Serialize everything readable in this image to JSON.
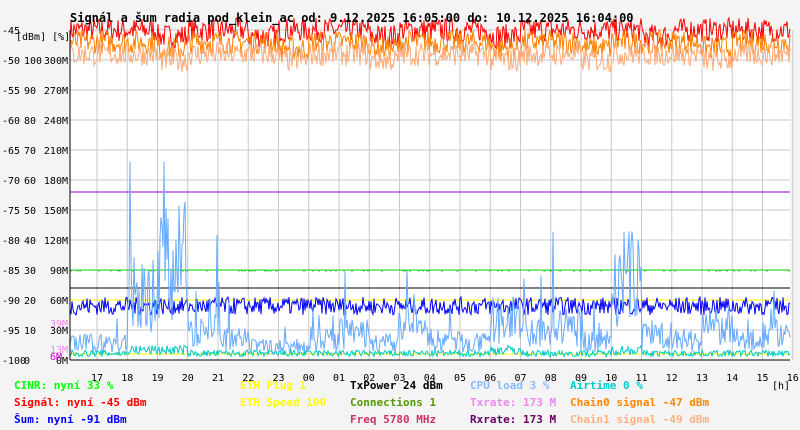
{
  "chart_data": {
    "type": "line",
    "title": "Signál a šum radia pod_klein_ac od: 9.12.2025 16:05:00 do: 10.12.2025 16:04:00",
    "xunit": "[h]",
    "yunits": [
      "[dBm]",
      "[%]"
    ],
    "x_ticks": [
      "17",
      "18",
      "19",
      "20",
      "21",
      "22",
      "23",
      "00",
      "01",
      "02",
      "03",
      "04",
      "05",
      "06",
      "07",
      "08",
      "09",
      "10",
      "11",
      "12",
      "13",
      "14",
      "15",
      "16"
    ],
    "y_ticks_dbm": [
      "-45",
      "-50",
      "-55",
      "-60",
      "-65",
      "-70",
      "-75",
      "-80",
      "-85",
      "-90",
      "-95",
      "-100"
    ],
    "y_ticks_pct": [
      "",
      "100",
      "90",
      "80",
      "70",
      "60",
      "50",
      "40",
      "30",
      "20",
      "10",
      "0"
    ],
    "y_ticks_rate": [
      "",
      "300M",
      "270M",
      "240M",
      "210M",
      "180M",
      "150M",
      "120M",
      "90M",
      "60M",
      "30M",
      "0M"
    ],
    "y_ticks_extra": [
      "39M",
      "13M",
      "6M"
    ],
    "dbm_range": [
      -100,
      -45
    ],
    "series": [
      {
        "name": "Signál",
        "color": "#ff0000",
        "level": -45,
        "values": [
          -45,
          -45,
          -46,
          -45,
          -45,
          -46,
          -45,
          -45,
          -45,
          -46,
          -45,
          -45,
          -45,
          -46,
          -45,
          -45,
          -45,
          -45,
          -46,
          -45,
          -45,
          -45,
          -45,
          -45
        ]
      },
      {
        "name": "Chain0 signal",
        "color": "#ff8000",
        "level": -47,
        "values": [
          -47,
          -47,
          -48,
          -47,
          -47,
          -47,
          -48,
          -47,
          -47,
          -48,
          -47,
          -47,
          -47,
          -48,
          -47,
          -47,
          -48,
          -47,
          -47,
          -47,
          -48,
          -47,
          -47,
          -47
        ]
      },
      {
        "name": "Chain1 signal",
        "color": "#ffaa77",
        "level": -49,
        "values": [
          -49,
          -49,
          -50,
          -49,
          -49,
          -49,
          -50,
          -49,
          -49,
          -50,
          -49,
          -49,
          -49,
          -50,
          -49,
          -49,
          -50,
          -49,
          -49,
          -49,
          -50,
          -49,
          -49,
          -49
        ]
      },
      {
        "name": "Šum",
        "color": "#0000ff",
        "level": -91,
        "values": [
          -91,
          -91,
          -91,
          -91,
          -91,
          -91,
          -91,
          -91,
          -91,
          -91,
          -91,
          -91,
          -91,
          -91,
          -91,
          -91,
          -91,
          -91,
          -91,
          -91,
          -91,
          -91,
          -91,
          -91
        ]
      },
      {
        "name": "CINR",
        "color": "#00d000",
        "level": -85,
        "values": [
          33,
          33,
          33,
          33,
          33,
          33,
          33,
          33,
          33,
          33,
          33,
          33,
          33,
          33,
          33,
          33,
          33,
          33,
          33,
          33,
          33,
          33,
          33,
          33
        ]
      },
      {
        "name": "Txrate",
        "color": "#9400d3",
        "level": -72,
        "values": [
          173,
          173,
          173,
          173,
          173,
          173,
          173,
          173,
          173,
          173,
          173,
          173,
          173,
          173,
          173,
          173,
          173,
          173,
          173,
          173,
          173,
          173,
          173,
          173
        ]
      },
      {
        "name": "CPU load",
        "color": "#66aaff",
        "values": [
          5,
          20,
          30,
          10,
          6,
          4,
          4,
          6,
          8,
          5,
          10,
          6,
          5,
          12,
          8,
          10,
          6,
          25,
          8,
          6,
          10,
          6,
          8,
          4
        ]
      },
      {
        "name": "Airtime",
        "color": "#00c8c8",
        "values": [
          2,
          3,
          3,
          2,
          2,
          2,
          2,
          2,
          2,
          2,
          2,
          2,
          2,
          3,
          2,
          2,
          2,
          3,
          2,
          2,
          2,
          2,
          2,
          2
        ]
      }
    ]
  },
  "legend": [
    [
      {
        "label": "CINR: nyní 33 %",
        "color": "#00ff00"
      },
      {
        "label": "Signál: nyní -45 dBm",
        "color": "#ff0000"
      },
      {
        "label": "Šum: nyní -91 dBm",
        "color": "#0000ff"
      }
    ],
    [
      {
        "label": "ETH Plug 1",
        "color": "#ffff00"
      },
      {
        "label": "ETH Speed 100",
        "color": "#ffff00"
      }
    ],
    [
      {
        "label": "TxPower 24 dBm",
        "color": "#000000"
      },
      {
        "label": "Connections 1",
        "color": "#559900"
      },
      {
        "label": "Freq 5780 MHz",
        "color": "#cc3366"
      }
    ],
    [
      {
        "label": "CPU load 3 %",
        "color": "#88bbff"
      },
      {
        "label": "Txrate: 173 M",
        "color": "#ee88ee"
      },
      {
        "label": "Rxrate: 173 M",
        "color": "#660066"
      }
    ],
    [
      {
        "label": "Airtime 0 %",
        "color": "#00cccc"
      },
      {
        "label": "Chain0 signal -47 dBm",
        "color": "#ff8800"
      },
      {
        "label": "Chain1 signal -49 dBm",
        "color": "#ffb080"
      }
    ]
  ]
}
